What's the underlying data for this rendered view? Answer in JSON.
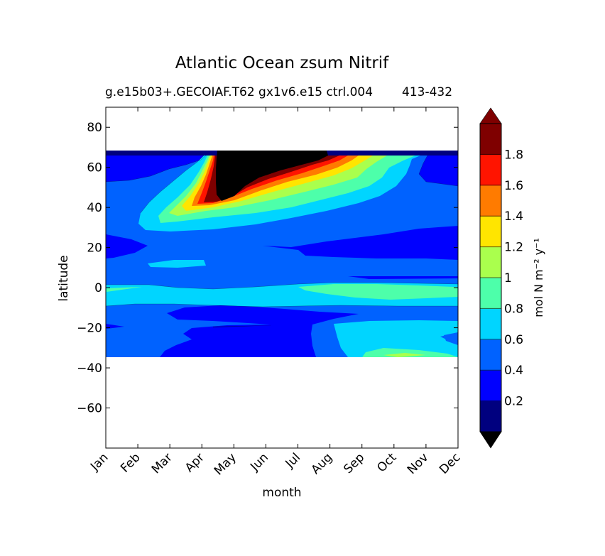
{
  "chart_data": {
    "type": "contourf",
    "title": "Atlantic Ocean zsum Nitrif",
    "subtitle_left": "g.e15b03+.GECOIAF.T62 gx1v6.e15 ctrl.004",
    "subtitle_right": "413-432",
    "xlabel": "month",
    "ylabel": "latitude",
    "x_ticks": [
      "Jan",
      "Feb",
      "Mar",
      "Apr",
      "May",
      "Jun",
      "Jul",
      "Aug",
      "Sep",
      "Oct",
      "Nov",
      "Dec"
    ],
    "ylim": [
      -80,
      90
    ],
    "y_ticks": [
      80,
      60,
      40,
      20,
      0,
      -20,
      -40,
      -60
    ],
    "data_lat_range": [
      -34,
      69
    ],
    "colorbar": {
      "label": "mol N m⁻² y⁻¹",
      "levels": [
        0,
        0.2,
        0.4,
        0.6,
        0.8,
        1.0,
        1.2,
        1.4,
        1.6,
        1.8,
        2.0
      ],
      "tick_labels": [
        "0.2",
        "0.4",
        "0.6",
        "0.8",
        "1",
        "1.2",
        "1.4",
        "1.6",
        "1.8"
      ],
      "colors": [
        "#00007f",
        "#0000ff",
        "#0062ff",
        "#00d5ff",
        "#4dffaa",
        "#aaff4d",
        "#ffe500",
        "#ff7b00",
        "#ff1400",
        "#7f0000"
      ],
      "extend_min_color": "#000000",
      "extend_max_color": "#7f0000",
      "over_color": "#000000"
    },
    "regions": [
      {
        "level": "0.2-0.4",
        "description": "NH high latitudes Jan-Feb & Nov-Dec (55-68N)",
        "bands": [
          [
            0.0,
            0.6,
            55,
            67
          ],
          [
            10.0,
            11.0,
            48,
            67
          ]
        ]
      },
      {
        "level": "0.2-0.4",
        "description": "subtropical North Atlantic Jan-Feb (13-27N) and Aug-Dec (14-31N)",
        "bands": [
          [
            0.0,
            1.2,
            13,
            27
          ],
          [
            6.5,
            11.0,
            14,
            31
          ]
        ]
      },
      {
        "level": "0.2-0.4",
        "description": "South Atlantic Mar-Aug (-34 to -10)",
        "bands": [
          [
            2.3,
            6.5,
            -34,
            -10
          ]
        ]
      },
      {
        "level": "0.0-0.2",
        "description": "northern boundary strip",
        "bands": [
          [
            0.0,
            11.0,
            67,
            69
          ]
        ]
      },
      {
        "level": "0.4-0.6",
        "description": "background over ocean domain",
        "bands": [
          [
            0.0,
            11.0,
            -34,
            69
          ]
        ]
      },
      {
        "level": "0.6-0.8",
        "description": "equatorial band Jan-Dec (-8 to 2)",
        "bands": [
          [
            0.0,
            11.0,
            -8,
            2
          ]
        ]
      },
      {
        "level": "0.6-0.8",
        "description": "South Atlantic Sep-Dec (-34 to -17)",
        "bands": [
          [
            7.5,
            11.0,
            -34,
            -17
          ]
        ]
      },
      {
        "level": "0.8-1.0",
        "description": "equatorial Aug-Dec (-5 to 0)",
        "bands": [
          [
            7.0,
            11.0,
            -5,
            0
          ]
        ]
      },
      {
        "level": "0.6-1.8+",
        "description": "spring/summer NH bloom Mar-Oct peaking May-Aug 40-68N",
        "bands": [
          [
            2.0,
            10.0,
            30,
            69
          ]
        ]
      },
      {
        "level": ">2.0",
        "description": "core May-Jul 42-69N",
        "bands": [
          [
            3.4,
            7.2,
            42,
            69
          ]
        ]
      }
    ]
  }
}
